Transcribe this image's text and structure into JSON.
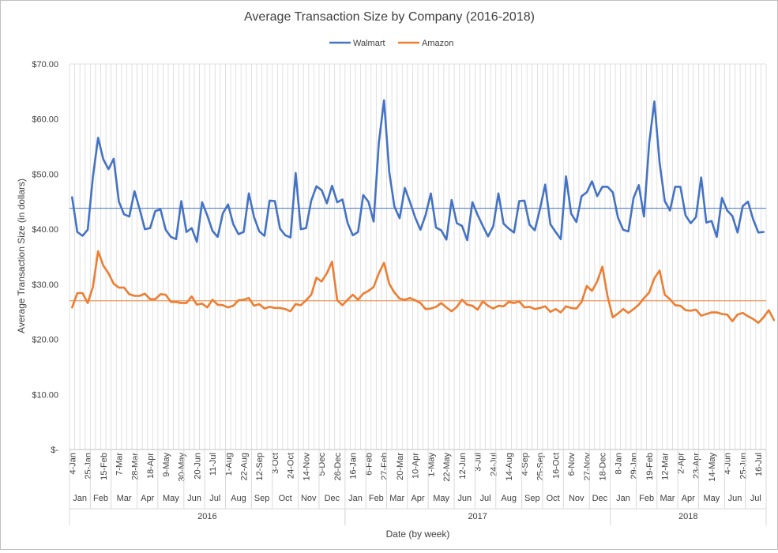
{
  "chart_data": {
    "type": "line",
    "title": "Average Transaction Size by Company (2016-2018)",
    "xlabel": "Date (by week)",
    "ylabel": "Average Transaction Size (in dollars)",
    "ylim": [
      0,
      70
    ],
    "y_ticks": [
      "$-",
      "$10.00",
      "$20.00",
      "$30.00",
      "$40.00",
      "$50.00",
      "$60.00",
      "$70.00"
    ],
    "y_tick_values": [
      0,
      10,
      20,
      30,
      40,
      50,
      60,
      70
    ],
    "week_count": 134,
    "week_labels": [
      {
        "week": 0,
        "label": "4-Jan"
      },
      {
        "week": 3,
        "label": "25-Jan"
      },
      {
        "week": 6,
        "label": "15-Feb"
      },
      {
        "week": 9,
        "label": "7-Mar"
      },
      {
        "week": 12,
        "label": "28-Mar"
      },
      {
        "week": 15,
        "label": "18-Apr"
      },
      {
        "week": 18,
        "label": "9-May"
      },
      {
        "week": 21,
        "label": "30-May"
      },
      {
        "week": 24,
        "label": "20-Jun"
      },
      {
        "week": 27,
        "label": "11-Jul"
      },
      {
        "week": 30,
        "label": "1-Aug"
      },
      {
        "week": 33,
        "label": "22-Aug"
      },
      {
        "week": 36,
        "label": "12-Sep"
      },
      {
        "week": 39,
        "label": "3-Oct"
      },
      {
        "week": 42,
        "label": "24-Oct"
      },
      {
        "week": 45,
        "label": "14-Nov"
      },
      {
        "week": 48,
        "label": "5-Dec"
      },
      {
        "week": 51,
        "label": "26-Dec"
      },
      {
        "week": 54,
        "label": "16-Jan"
      },
      {
        "week": 57,
        "label": "6-Feb"
      },
      {
        "week": 60,
        "label": "27-Feb"
      },
      {
        "week": 63,
        "label": "20-Mar"
      },
      {
        "week": 66,
        "label": "10-Apr"
      },
      {
        "week": 69,
        "label": "1-May"
      },
      {
        "week": 72,
        "label": "22-May"
      },
      {
        "week": 75,
        "label": "12-Jun"
      },
      {
        "week": 78,
        "label": "3-Jul"
      },
      {
        "week": 81,
        "label": "24-Jul"
      },
      {
        "week": 84,
        "label": "14-Aug"
      },
      {
        "week": 87,
        "label": "4-Sep"
      },
      {
        "week": 90,
        "label": "25-Sep"
      },
      {
        "week": 93,
        "label": "16-Oct"
      },
      {
        "week": 96,
        "label": "6-Nov"
      },
      {
        "week": 99,
        "label": "27-Nov"
      },
      {
        "week": 102,
        "label": "18-Dec"
      },
      {
        "week": 105,
        "label": "8-Jan"
      },
      {
        "week": 108,
        "label": "29-Jan"
      },
      {
        "week": 111,
        "label": "19-Feb"
      },
      {
        "week": 114,
        "label": "12-Mar"
      },
      {
        "week": 117,
        "label": "2-Apr"
      },
      {
        "week": 120,
        "label": "23-Apr"
      },
      {
        "week": 123,
        "label": "14-May"
      },
      {
        "week": 126,
        "label": "4-Jun"
      },
      {
        "week": 129,
        "label": "25-Jun"
      },
      {
        "week": 132,
        "label": "16-Jul"
      }
    ],
    "months": [
      {
        "label": "Jan",
        "start": 0,
        "end": 4
      },
      {
        "label": "Feb",
        "start": 4,
        "end": 8
      },
      {
        "label": "Mar",
        "start": 8,
        "end": 13
      },
      {
        "label": "Apr",
        "start": 13,
        "end": 17
      },
      {
        "label": "May",
        "start": 17,
        "end": 22
      },
      {
        "label": "Jun",
        "start": 22,
        "end": 26
      },
      {
        "label": "Jul",
        "start": 26,
        "end": 30
      },
      {
        "label": "Aug",
        "start": 30,
        "end": 35
      },
      {
        "label": "Sep",
        "start": 35,
        "end": 39
      },
      {
        "label": "Oct",
        "start": 39,
        "end": 44
      },
      {
        "label": "Nov",
        "start": 44,
        "end": 48
      },
      {
        "label": "Dec",
        "start": 48,
        "end": 53
      },
      {
        "label": "Jan",
        "start": 53,
        "end": 57
      },
      {
        "label": "Feb",
        "start": 57,
        "end": 61
      },
      {
        "label": "Mar",
        "start": 61,
        "end": 65
      },
      {
        "label": "Apr",
        "start": 65,
        "end": 69
      },
      {
        "label": "May",
        "start": 69,
        "end": 74
      },
      {
        "label": "Jun",
        "start": 74,
        "end": 78
      },
      {
        "label": "Jul",
        "start": 78,
        "end": 82
      },
      {
        "label": "Aug",
        "start": 82,
        "end": 87
      },
      {
        "label": "Sep",
        "start": 87,
        "end": 91
      },
      {
        "label": "Oct",
        "start": 91,
        "end": 95
      },
      {
        "label": "Nov",
        "start": 95,
        "end": 100
      },
      {
        "label": "Dec",
        "start": 100,
        "end": 104
      },
      {
        "label": "Jan",
        "start": 104,
        "end": 109
      },
      {
        "label": "Feb",
        "start": 109,
        "end": 113
      },
      {
        "label": "Mar",
        "start": 113,
        "end": 117
      },
      {
        "label": "Apr",
        "start": 117,
        "end": 121
      },
      {
        "label": "May",
        "start": 121,
        "end": 126
      },
      {
        "label": "Jun",
        "start": 126,
        "end": 130
      },
      {
        "label": "Jul",
        "start": 130,
        "end": 134
      }
    ],
    "years": [
      {
        "label": "2016",
        "start": 0,
        "end": 53
      },
      {
        "label": "2017",
        "start": 53,
        "end": 104
      },
      {
        "label": "2018",
        "start": 104,
        "end": 134
      }
    ],
    "series": [
      {
        "name": "Walmart",
        "color": "#4472c4",
        "average": 43.8,
        "values": [
          45.8,
          39.5,
          38.8,
          39.9,
          49.5,
          56.6,
          52.7,
          50.9,
          52.8,
          45.0,
          42.7,
          42.3,
          46.9,
          43.6,
          40.0,
          40.2,
          43.3,
          43.6,
          39.9,
          38.6,
          38.2,
          45.1,
          39.5,
          40.2,
          37.7,
          44.9,
          42.5,
          39.7,
          38.6,
          42.9,
          44.5,
          40.9,
          39.1,
          39.5,
          46.5,
          42.2,
          39.6,
          38.8,
          45.2,
          45.1,
          40.1,
          38.9,
          38.5,
          50.2,
          40.0,
          40.2,
          45.2,
          47.8,
          47.1,
          44.7,
          47.9,
          44.9,
          45.4,
          41.1,
          38.9,
          39.5,
          46.2,
          45.0,
          41.4,
          55.7,
          63.4,
          50.4,
          44.1,
          42.0,
          47.5,
          44.9,
          42.1,
          39.9,
          42.6,
          46.5,
          40.3,
          39.8,
          38.1,
          45.3,
          41.1,
          40.6,
          38.0,
          44.9,
          42.6,
          40.6,
          38.7,
          40.5,
          46.5,
          41.0,
          40.1,
          39.4,
          45.1,
          45.2,
          40.8,
          39.8,
          43.7,
          48.1,
          40.9,
          39.5,
          38.2,
          49.6,
          42.8,
          41.3,
          46.0,
          46.7,
          48.7,
          46.0,
          47.7,
          47.7,
          46.7,
          42.1,
          39.9,
          39.6,
          45.7,
          48.0,
          42.3,
          55.6,
          63.2,
          52.1,
          45.1,
          43.4,
          47.7,
          47.7,
          42.5,
          41.1,
          42.2,
          49.4,
          41.2,
          41.5,
          38.6,
          45.7,
          43.4,
          42.4,
          39.4,
          44.2,
          45.0,
          41.8,
          39.4,
          39.5
        ]
      },
      {
        "name": "Amazon",
        "color": "#ed7d31",
        "average": 27.0,
        "values": [
          25.8,
          28.4,
          28.4,
          26.6,
          29.5,
          36.0,
          33.4,
          32.0,
          30.1,
          29.4,
          29.4,
          28.2,
          27.9,
          27.9,
          28.3,
          27.3,
          27.3,
          28.2,
          28.1,
          26.8,
          26.8,
          26.6,
          26.6,
          27.8,
          26.3,
          26.5,
          25.8,
          27.2,
          26.3,
          26.2,
          25.8,
          26.1,
          27.1,
          27.2,
          27.5,
          26.1,
          26.4,
          25.6,
          25.9,
          25.7,
          25.7,
          25.5,
          25.1,
          26.4,
          26.2,
          27.1,
          28.1,
          31.2,
          30.5,
          32.0,
          34.1,
          27.1,
          26.2,
          27.2,
          28.1,
          27.2,
          28.3,
          28.8,
          29.5,
          32.0,
          33.9,
          30.1,
          28.5,
          27.4,
          27.2,
          27.5,
          27.1,
          26.6,
          25.5,
          25.6,
          25.9,
          26.6,
          25.8,
          25.1,
          25.9,
          27.2,
          26.3,
          26.1,
          25.4,
          26.9,
          26.1,
          25.6,
          26.1,
          26.0,
          26.8,
          26.6,
          26.9,
          25.8,
          25.9,
          25.5,
          25.7,
          26.0,
          25.0,
          25.5,
          24.9,
          26.0,
          25.7,
          25.6,
          26.8,
          29.7,
          28.8,
          30.5,
          33.2,
          27.8,
          24.0,
          24.7,
          25.5,
          24.8,
          25.5,
          26.3,
          27.5,
          28.5,
          31.1,
          32.5,
          28.1,
          27.3,
          26.2,
          26.1,
          25.3,
          25.2,
          25.4,
          24.3,
          24.6,
          24.9,
          24.9,
          24.6,
          24.5,
          23.3,
          24.5,
          24.8,
          24.2,
          23.7,
          23.0,
          24.0,
          25.3,
          23.5
        ]
      }
    ]
  }
}
